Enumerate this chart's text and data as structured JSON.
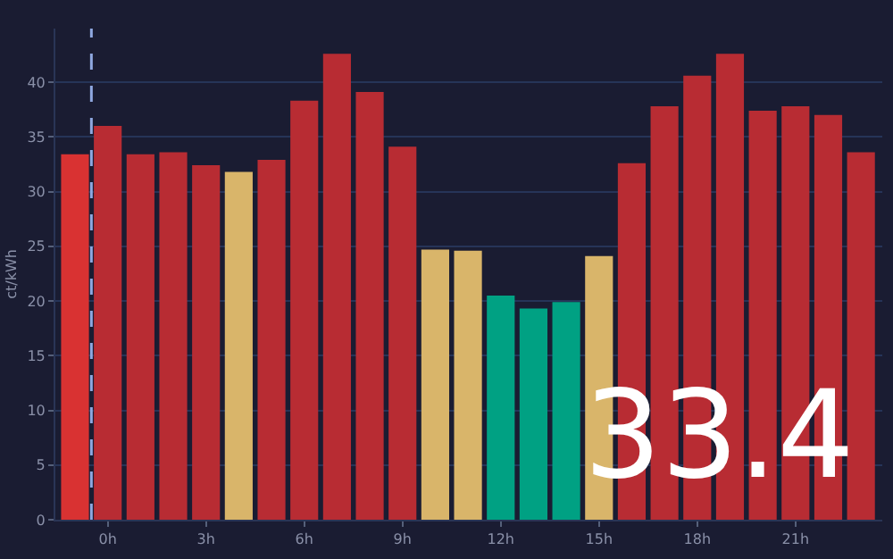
{
  "chart_data": {
    "type": "bar",
    "ylabel": "ct/kWh",
    "x": [
      -1,
      0,
      1,
      2,
      3,
      4,
      5,
      6,
      7,
      8,
      9,
      10,
      11,
      12,
      13,
      14,
      15,
      16,
      17,
      18,
      19,
      20,
      21,
      22,
      23
    ],
    "values": [
      33.4,
      36.0,
      33.4,
      33.6,
      32.4,
      31.8,
      32.9,
      38.3,
      42.6,
      39.1,
      34.1,
      24.7,
      24.6,
      20.5,
      19.3,
      19.9,
      24.1,
      32.6,
      37.8,
      40.6,
      42.6,
      37.4,
      37.8,
      37.0,
      33.6
    ],
    "colors": [
      "#d93232",
      "#b82c33",
      "#b82c33",
      "#b82c33",
      "#b82c33",
      "#d9b56a",
      "#b82c33",
      "#b82c33",
      "#b82c33",
      "#b82c33",
      "#b82c33",
      "#d9b56a",
      "#d9b56a",
      "#00a183",
      "#00a183",
      "#00a183",
      "#d9b56a",
      "#b82c33",
      "#b82c33",
      "#b82c33",
      "#b82c33",
      "#b82c33",
      "#b82c33",
      "#b82c33",
      "#b82c33"
    ],
    "xlim": [
      -1.6,
      23.65
    ],
    "ylim": [
      0,
      44.9
    ],
    "xticks": [
      {
        "value": 0,
        "label": "0h"
      },
      {
        "value": 3,
        "label": "3h"
      },
      {
        "value": 6,
        "label": "6h"
      },
      {
        "value": 9,
        "label": "9h"
      },
      {
        "value": 12,
        "label": "12h"
      },
      {
        "value": 15,
        "label": "15h"
      },
      {
        "value": 18,
        "label": "18h"
      },
      {
        "value": 21,
        "label": "21h"
      }
    ],
    "yticks": [
      0,
      5,
      10,
      15,
      20,
      25,
      30,
      35,
      40
    ],
    "grid": "y",
    "ref_lines": [
      {
        "axis": "x",
        "value": -0.5,
        "color": "#8fa8e0",
        "line_style": "dashed"
      }
    ],
    "annotations": [
      "33.4"
    ],
    "legend": false
  }
}
